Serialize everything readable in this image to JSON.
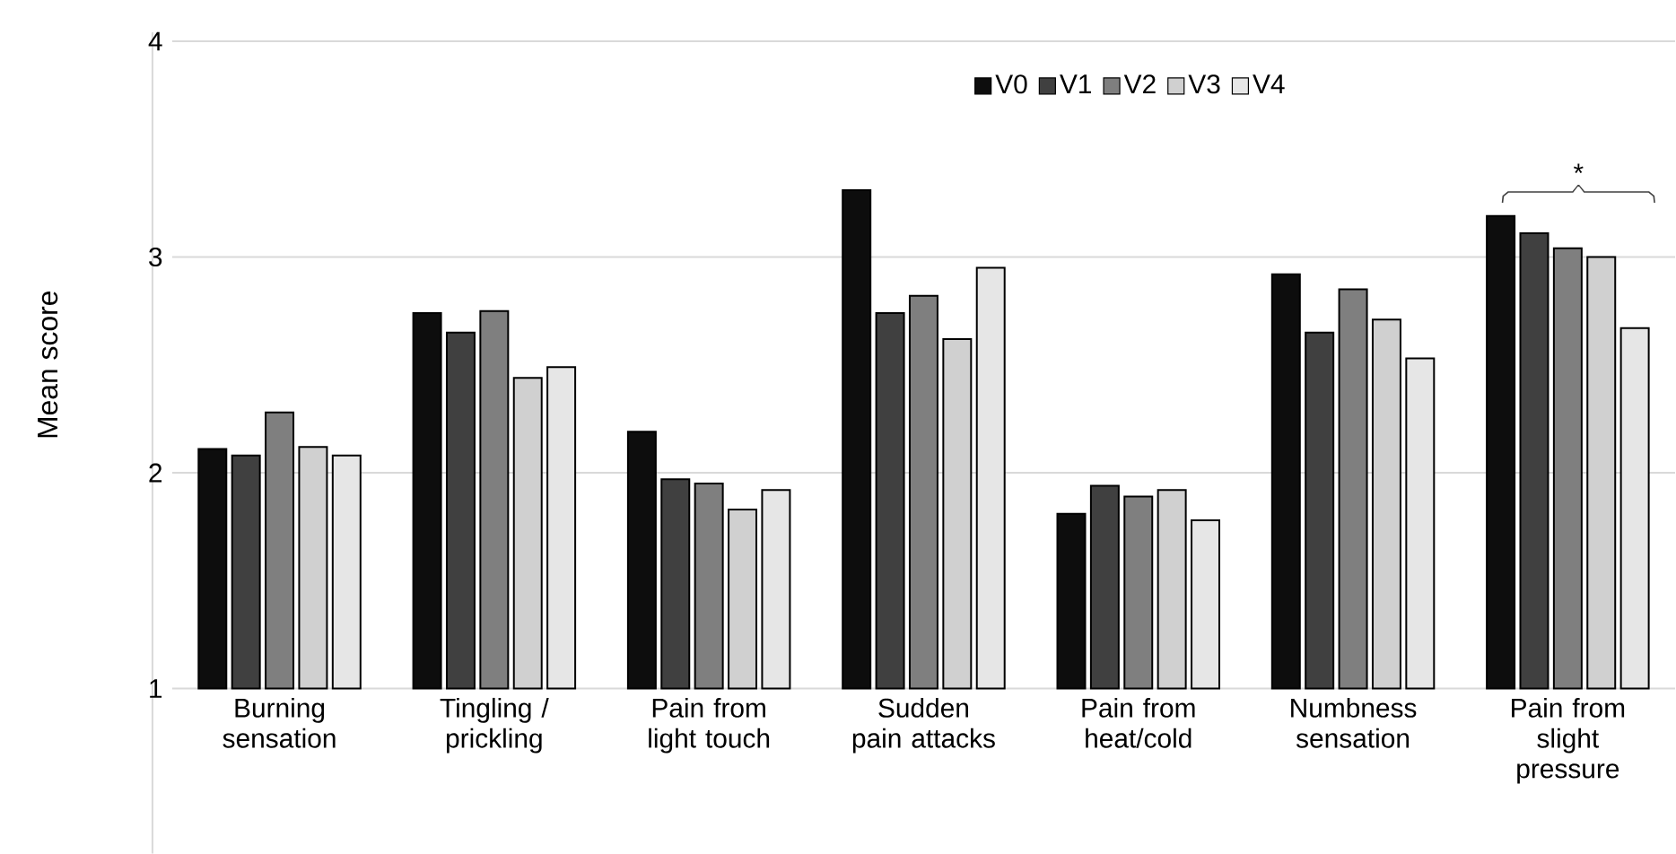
{
  "chart_data": {
    "type": "bar",
    "ylabel": "Mean score",
    "categories": [
      "Burning sensation",
      "Tingling / prickling",
      "Pain from light touch",
      "Sudden pain attacks",
      "Pain from heat/cold",
      "Numbness sensation",
      "Pain from slight pressure"
    ],
    "series": [
      {
        "name": "V0",
        "color": "#0d0d0d",
        "values": [
          2.11,
          2.74,
          2.19,
          3.31,
          1.81,
          2.92,
          3.19
        ]
      },
      {
        "name": "V1",
        "color": "#404040",
        "values": [
          2.08,
          2.65,
          1.97,
          2.74,
          1.94,
          2.65,
          3.11
        ]
      },
      {
        "name": "V2",
        "color": "#7f7f7f",
        "values": [
          2.28,
          2.75,
          1.95,
          2.82,
          1.89,
          2.85,
          3.04
        ]
      },
      {
        "name": "V3",
        "color": "#d0d0d0",
        "values": [
          2.12,
          2.44,
          1.83,
          2.62,
          1.92,
          2.71,
          3.0
        ]
      },
      {
        "name": "V4",
        "color": "#e6e6e6",
        "values": [
          2.08,
          2.49,
          1.92,
          2.95,
          1.78,
          2.53,
          2.67
        ]
      }
    ],
    "ylim": [
      1,
      4
    ],
    "yticks": [
      1,
      2,
      3,
      4
    ],
    "grid": "y",
    "legend": "top right",
    "annotations": [
      "*"
    ]
  }
}
